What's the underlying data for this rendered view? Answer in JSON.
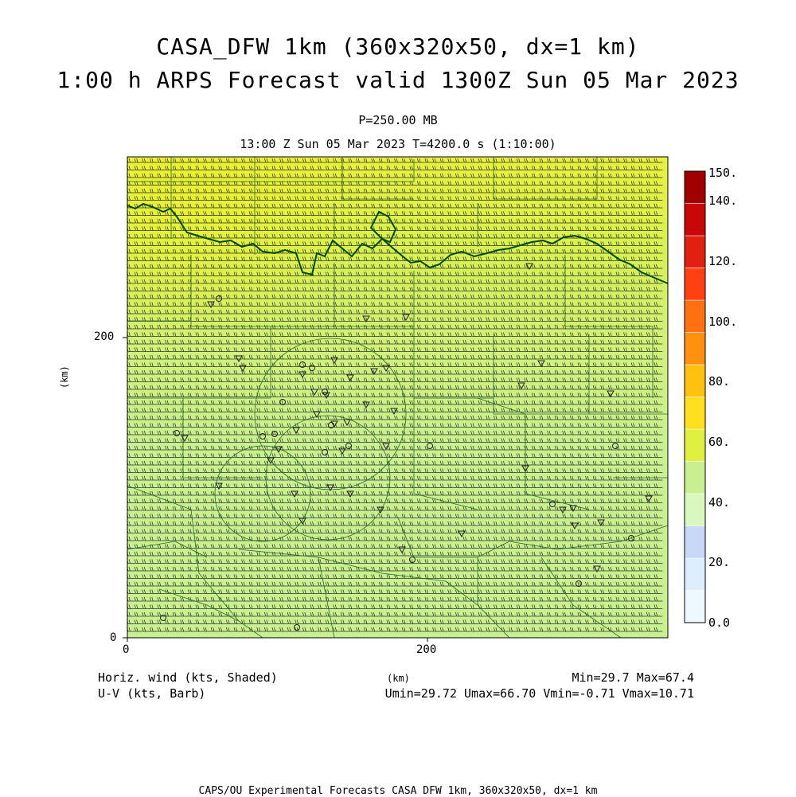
{
  "header": {
    "title_line1": "CASA_DFW 1km (360x320x50, dx=1 km)",
    "title_line2": "1:00 h ARPS Forecast valid 1300Z Sun 05 Mar 2023",
    "level": "P=250.00 MB",
    "time_line": "13:00 Z Sun 05 Mar 2023    T=4200.0 s (1:10:00)"
  },
  "axes": {
    "y_label": "(km)",
    "x_label": "(km)",
    "y_ticks": [
      "200",
      "0"
    ],
    "x_ticks": [
      "0",
      "200"
    ]
  },
  "legend": {
    "variable_shaded": "Horiz. wind (kts, Shaded)",
    "variable_barb": "U-V (kts, Barb)",
    "min_max": "Min=29.7 Max=67.4",
    "uv_stats": "Umin=29.72 Umax=66.70 Vmin=-0.71 Vmax=10.71"
  },
  "colorbar": {
    "labels": [
      "150.",
      "140.",
      "120.",
      "100.",
      "80.",
      "60.",
      "40.",
      "20.",
      "0.0"
    ],
    "colors": [
      "#eef8ff",
      "#dceeff",
      "#c8d8f8",
      "#d8f8c0",
      "#c8f090",
      "#e0f040",
      "#ffe020",
      "#ffc010",
      "#ff9010",
      "#ff7010",
      "#ff4010",
      "#e02010",
      "#c80808",
      "#a00000"
    ]
  },
  "map": {
    "field_colors": {
      "north_yellow": "#e8f040",
      "mid_green": "#d2f27a",
      "south_green": "#c8f090",
      "county_lines": "#226622",
      "river_line": "#005000",
      "barbs": "#000000"
    }
  },
  "footer": {
    "text": "CAPS/OU Experimental Forecasts  CASA DFW 1km, 360x320x50, dx=1 km"
  }
}
